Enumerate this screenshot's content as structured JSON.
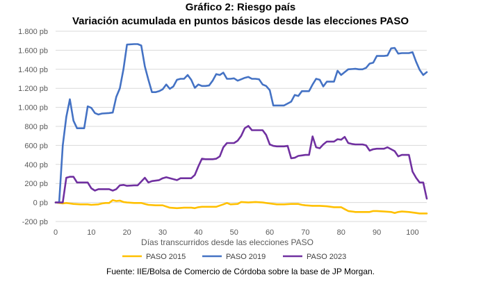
{
  "title": "Gráfico 2: Riesgo país",
  "subtitle": "Variación acumulada en puntos básicos desde las elecciones PASO",
  "source": "Fuente: IIE/Bolsa de Comercio de Córdoba sobre la base de JP Morgan.",
  "chart_data": {
    "type": "line",
    "title": "Gráfico 2: Riesgo país",
    "subtitle": "Variación acumulada en puntos básicos desde las elecciones PASO",
    "xlabel": "Días transcurridos desde las elecciones PASO",
    "ylabel": "",
    "xlim": [
      0,
      104
    ],
    "ylim": [
      -200,
      1800
    ],
    "xticks": [
      0,
      10,
      20,
      30,
      40,
      50,
      60,
      70,
      80,
      90,
      100
    ],
    "yticks": [
      -200,
      0,
      200,
      400,
      600,
      800,
      1000,
      1200,
      1400,
      1600,
      1800
    ],
    "ytick_labels": [
      "-200 pb",
      "0 pb",
      "200 pb",
      "400 pb",
      "600 pb",
      "800 pb",
      "1.000 pb",
      "1.200 pb",
      "1.400 pb",
      "1.600 pb",
      "1.800 pb"
    ],
    "grid": "horizontal",
    "legend_position": "bottom",
    "series": [
      {
        "name": "PASO 2015",
        "color": "#ffc000",
        "points": [
          [
            0,
            0
          ],
          [
            2,
            -10
          ],
          [
            3,
            -5
          ],
          [
            4,
            -10
          ],
          [
            5,
            -15
          ],
          [
            7,
            -20
          ],
          [
            9,
            -20
          ],
          [
            10,
            -25
          ],
          [
            12,
            -20
          ],
          [
            13,
            -10
          ],
          [
            14,
            -5
          ],
          [
            15,
            -5
          ],
          [
            16,
            25
          ],
          [
            17,
            15
          ],
          [
            18,
            20
          ],
          [
            19,
            5
          ],
          [
            20,
            0
          ],
          [
            22,
            -5
          ],
          [
            24,
            -5
          ],
          [
            25,
            -15
          ],
          [
            26,
            -25
          ],
          [
            28,
            -30
          ],
          [
            30,
            -30
          ],
          [
            32,
            -55
          ],
          [
            34,
            -60
          ],
          [
            36,
            -55
          ],
          [
            38,
            -55
          ],
          [
            39,
            -60
          ],
          [
            40,
            -50
          ],
          [
            41,
            -45
          ],
          [
            43,
            -45
          ],
          [
            45,
            -45
          ],
          [
            47,
            -20
          ],
          [
            48,
            -5
          ],
          [
            49,
            -20
          ],
          [
            51,
            -15
          ],
          [
            52,
            5
          ],
          [
            54,
            0
          ],
          [
            56,
            5
          ],
          [
            58,
            0
          ],
          [
            60,
            -10
          ],
          [
            62,
            -20
          ],
          [
            64,
            -20
          ],
          [
            66,
            -15
          ],
          [
            68,
            -15
          ],
          [
            69,
            -25
          ],
          [
            70,
            -30
          ],
          [
            72,
            -35
          ],
          [
            74,
            -35
          ],
          [
            76,
            -40
          ],
          [
            78,
            -50
          ],
          [
            80,
            -50
          ],
          [
            81,
            -70
          ],
          [
            82,
            -90
          ],
          [
            84,
            -100
          ],
          [
            86,
            -100
          ],
          [
            88,
            -100
          ],
          [
            89,
            -90
          ],
          [
            90,
            -90
          ],
          [
            92,
            -95
          ],
          [
            94,
            -100
          ],
          [
            95,
            -110
          ],
          [
            96,
            -100
          ],
          [
            97,
            -95
          ],
          [
            99,
            -100
          ],
          [
            101,
            -110
          ],
          [
            102,
            -115
          ],
          [
            104,
            -115
          ]
        ]
      },
      {
        "name": "PASO 2019",
        "color": "#4472c4",
        "points": [
          [
            0,
            0
          ],
          [
            1,
            0
          ],
          [
            2,
            600
          ],
          [
            3,
            900
          ],
          [
            4,
            1085
          ],
          [
            5,
            860
          ],
          [
            6,
            780
          ],
          [
            8,
            780
          ],
          [
            9,
            1010
          ],
          [
            10,
            995
          ],
          [
            11,
            940
          ],
          [
            12,
            925
          ],
          [
            13,
            935
          ],
          [
            15,
            940
          ],
          [
            16,
            945
          ],
          [
            17,
            1110
          ],
          [
            18,
            1200
          ],
          [
            19,
            1400
          ],
          [
            20,
            1660
          ],
          [
            22,
            1665
          ],
          [
            23,
            1665
          ],
          [
            24,
            1650
          ],
          [
            25,
            1430
          ],
          [
            26,
            1290
          ],
          [
            27,
            1160
          ],
          [
            28,
            1160
          ],
          [
            29,
            1170
          ],
          [
            30,
            1190
          ],
          [
            31,
            1240
          ],
          [
            32,
            1195
          ],
          [
            33,
            1220
          ],
          [
            34,
            1290
          ],
          [
            35,
            1300
          ],
          [
            36,
            1300
          ],
          [
            37,
            1340
          ],
          [
            38,
            1290
          ],
          [
            39,
            1205
          ],
          [
            40,
            1240
          ],
          [
            41,
            1225
          ],
          [
            42,
            1225
          ],
          [
            43,
            1230
          ],
          [
            44,
            1280
          ],
          [
            45,
            1350
          ],
          [
            46,
            1340
          ],
          [
            47,
            1365
          ],
          [
            48,
            1300
          ],
          [
            49,
            1300
          ],
          [
            50,
            1305
          ],
          [
            51,
            1280
          ],
          [
            52,
            1295
          ],
          [
            53,
            1310
          ],
          [
            54,
            1320
          ],
          [
            55,
            1300
          ],
          [
            56,
            1300
          ],
          [
            57,
            1295
          ],
          [
            58,
            1240
          ],
          [
            59,
            1225
          ],
          [
            60,
            1180
          ],
          [
            61,
            1020
          ],
          [
            62,
            1020
          ],
          [
            64,
            1020
          ],
          [
            65,
            1040
          ],
          [
            66,
            1060
          ],
          [
            67,
            1130
          ],
          [
            68,
            1120
          ],
          [
            69,
            1170
          ],
          [
            71,
            1170
          ],
          [
            72,
            1240
          ],
          [
            73,
            1300
          ],
          [
            74,
            1290
          ],
          [
            75,
            1220
          ],
          [
            76,
            1270
          ],
          [
            78,
            1270
          ],
          [
            79,
            1385
          ],
          [
            80,
            1340
          ],
          [
            81,
            1370
          ],
          [
            82,
            1400
          ],
          [
            84,
            1405
          ],
          [
            85,
            1400
          ],
          [
            86,
            1400
          ],
          [
            87,
            1415
          ],
          [
            88,
            1460
          ],
          [
            89,
            1470
          ],
          [
            90,
            1540
          ],
          [
            92,
            1540
          ],
          [
            93,
            1545
          ],
          [
            94,
            1620
          ],
          [
            95,
            1625
          ],
          [
            96,
            1565
          ],
          [
            97,
            1570
          ],
          [
            99,
            1570
          ],
          [
            100,
            1580
          ],
          [
            101,
            1480
          ],
          [
            102,
            1395
          ],
          [
            103,
            1340
          ],
          [
            104,
            1370
          ]
        ]
      },
      {
        "name": "PASO 2023",
        "color": "#7030a0",
        "points": [
          [
            0,
            0
          ],
          [
            2,
            0
          ],
          [
            3,
            260
          ],
          [
            4,
            270
          ],
          [
            5,
            270
          ],
          [
            6,
            210
          ],
          [
            7,
            210
          ],
          [
            9,
            210
          ],
          [
            10,
            150
          ],
          [
            11,
            125
          ],
          [
            12,
            140
          ],
          [
            15,
            140
          ],
          [
            16,
            125
          ],
          [
            17,
            140
          ],
          [
            18,
            180
          ],
          [
            19,
            185
          ],
          [
            20,
            175
          ],
          [
            22,
            180
          ],
          [
            23,
            180
          ],
          [
            24,
            220
          ],
          [
            25,
            260
          ],
          [
            26,
            210
          ],
          [
            27,
            225
          ],
          [
            29,
            235
          ],
          [
            30,
            255
          ],
          [
            31,
            265
          ],
          [
            33,
            245
          ],
          [
            34,
            235
          ],
          [
            35,
            255
          ],
          [
            37,
            255
          ],
          [
            38,
            255
          ],
          [
            39,
            290
          ],
          [
            40,
            380
          ],
          [
            41,
            460
          ],
          [
            42,
            455
          ],
          [
            44,
            455
          ],
          [
            45,
            460
          ],
          [
            46,
            485
          ],
          [
            47,
            580
          ],
          [
            48,
            625
          ],
          [
            50,
            625
          ],
          [
            51,
            650
          ],
          [
            52,
            700
          ],
          [
            53,
            780
          ],
          [
            54,
            805
          ],
          [
            55,
            760
          ],
          [
            57,
            760
          ],
          [
            58,
            760
          ],
          [
            59,
            710
          ],
          [
            60,
            610
          ],
          [
            61,
            595
          ],
          [
            62,
            590
          ],
          [
            64,
            590
          ],
          [
            65,
            595
          ],
          [
            66,
            465
          ],
          [
            67,
            470
          ],
          [
            68,
            490
          ],
          [
            69,
            495
          ],
          [
            70,
            500
          ],
          [
            71,
            500
          ],
          [
            72,
            695
          ],
          [
            73,
            580
          ],
          [
            74,
            570
          ],
          [
            75,
            610
          ],
          [
            76,
            640
          ],
          [
            78,
            640
          ],
          [
            79,
            665
          ],
          [
            80,
            660
          ],
          [
            81,
            690
          ],
          [
            82,
            625
          ],
          [
            83,
            615
          ],
          [
            84,
            610
          ],
          [
            86,
            610
          ],
          [
            87,
            600
          ],
          [
            88,
            545
          ],
          [
            89,
            560
          ],
          [
            90,
            565
          ],
          [
            92,
            565
          ],
          [
            93,
            580
          ],
          [
            95,
            540
          ],
          [
            96,
            485
          ],
          [
            97,
            500
          ],
          [
            99,
            500
          ],
          [
            100,
            325
          ],
          [
            101,
            260
          ],
          [
            102,
            210
          ],
          [
            103,
            210
          ],
          [
            104,
            40
          ]
        ]
      }
    ]
  }
}
